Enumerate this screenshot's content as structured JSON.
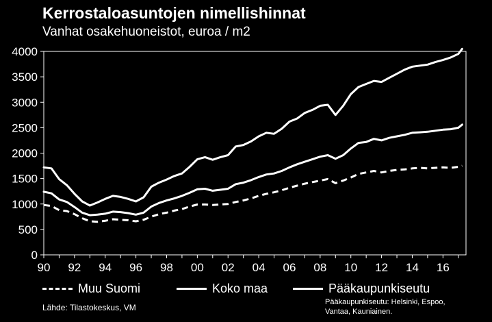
{
  "title": "Kerrostaloasuntojen nimellishinnat",
  "subtitle": "Vanhat osakehuoneistot, euroa / m2",
  "source": "Lähde: Tilastokeskus, VM",
  "note": "Pääkaupunkiseutu: Helsinki, Espoo, Vantaa, Kauniainen.",
  "colors": {
    "background": "#000000",
    "plot_area": "#ffffff",
    "series": "#ffffff"
  },
  "chart_data": {
    "type": "line",
    "title": "Kerrostaloasuntojen nimellishinnat",
    "subtitle": "Vanhat osakehuoneistot, euroa / m2",
    "xlabel": "",
    "ylabel": "",
    "xlim": [
      1990,
      2017.5
    ],
    "ylim": [
      0,
      4000
    ],
    "yticks": [
      0,
      500,
      1000,
      1500,
      2000,
      2500,
      3000,
      3500,
      4000
    ],
    "xticks": [
      "90",
      "92",
      "94",
      "96",
      "98",
      "00",
      "02",
      "04",
      "06",
      "08",
      "10",
      "12",
      "14",
      "16"
    ],
    "grid": false,
    "legend_position": "bottom",
    "series": [
      {
        "name": "Muu Suomi",
        "style": "dashed",
        "x": [
          1990.0,
          1990.5,
          1991.0,
          1991.5,
          1992.0,
          1992.5,
          1993.0,
          1993.5,
          1994.0,
          1994.5,
          1995.0,
          1995.5,
          1996.0,
          1996.5,
          1997.0,
          1997.5,
          1998.0,
          1998.5,
          1999.0,
          1999.5,
          2000.0,
          2000.5,
          2001.0,
          2001.5,
          2002.0,
          2002.5,
          2003.0,
          2003.5,
          2004.0,
          2004.5,
          2005.0,
          2005.5,
          2006.0,
          2006.5,
          2007.0,
          2007.5,
          2008.0,
          2008.5,
          2009.0,
          2009.5,
          2010.0,
          2010.5,
          2011.0,
          2011.5,
          2012.0,
          2012.5,
          2013.0,
          2013.5,
          2014.0,
          2014.5,
          2015.0,
          2015.5,
          2016.0,
          2016.5,
          2017.0,
          2017.25
        ],
        "values": [
          980,
          960,
          880,
          860,
          800,
          720,
          660,
          650,
          670,
          700,
          690,
          680,
          660,
          690,
          750,
          800,
          830,
          870,
          900,
          950,
          990,
          990,
          980,
          990,
          1000,
          1040,
          1070,
          1110,
          1160,
          1200,
          1230,
          1270,
          1320,
          1360,
          1400,
          1430,
          1460,
          1490,
          1410,
          1460,
          1520,
          1590,
          1620,
          1650,
          1620,
          1650,
          1670,
          1680,
          1700,
          1710,
          1700,
          1710,
          1720,
          1710,
          1730,
          1750
        ]
      },
      {
        "name": "Koko maa",
        "style": "solid",
        "x": [
          1990.0,
          1990.5,
          1991.0,
          1991.5,
          1992.0,
          1992.5,
          1993.0,
          1993.5,
          1994.0,
          1994.5,
          1995.0,
          1995.5,
          1996.0,
          1996.5,
          1997.0,
          1997.5,
          1998.0,
          1998.5,
          1999.0,
          1999.5,
          2000.0,
          2000.5,
          2001.0,
          2001.5,
          2002.0,
          2002.5,
          2003.0,
          2003.5,
          2004.0,
          2004.5,
          2005.0,
          2005.5,
          2006.0,
          2006.5,
          2007.0,
          2007.5,
          2008.0,
          2008.5,
          2009.0,
          2009.5,
          2010.0,
          2010.5,
          2011.0,
          2011.5,
          2012.0,
          2012.5,
          2013.0,
          2013.5,
          2014.0,
          2014.5,
          2015.0,
          2015.5,
          2016.0,
          2016.5,
          2017.0,
          2017.25
        ],
        "values": [
          1240,
          1210,
          1090,
          1040,
          940,
          830,
          780,
          790,
          810,
          850,
          840,
          820,
          790,
          830,
          950,
          1020,
          1070,
          1110,
          1160,
          1220,
          1290,
          1300,
          1260,
          1280,
          1300,
          1390,
          1420,
          1470,
          1530,
          1580,
          1600,
          1650,
          1720,
          1780,
          1830,
          1880,
          1930,
          1960,
          1890,
          1960,
          2090,
          2200,
          2220,
          2280,
          2250,
          2300,
          2330,
          2360,
          2400,
          2410,
          2420,
          2440,
          2460,
          2470,
          2500,
          2560
        ]
      },
      {
        "name": "Pääkaupunkiseutu",
        "style": "solid",
        "x": [
          1990.0,
          1990.5,
          1991.0,
          1991.5,
          1992.0,
          1992.5,
          1993.0,
          1993.5,
          1994.0,
          1994.5,
          1995.0,
          1995.5,
          1996.0,
          1996.5,
          1997.0,
          1997.5,
          1998.0,
          1998.5,
          1999.0,
          1999.5,
          2000.0,
          2000.5,
          2001.0,
          2001.5,
          2002.0,
          2002.5,
          2003.0,
          2003.5,
          2004.0,
          2004.5,
          2005.0,
          2005.5,
          2006.0,
          2006.5,
          2007.0,
          2007.5,
          2008.0,
          2008.5,
          2009.0,
          2009.5,
          2010.0,
          2010.5,
          2011.0,
          2011.5,
          2012.0,
          2012.5,
          2013.0,
          2013.5,
          2014.0,
          2014.5,
          2015.0,
          2015.5,
          2016.0,
          2016.5,
          2017.0,
          2017.25
        ],
        "values": [
          1720,
          1700,
          1490,
          1370,
          1200,
          1050,
          970,
          1030,
          1100,
          1160,
          1140,
          1100,
          1050,
          1130,
          1340,
          1420,
          1480,
          1550,
          1600,
          1730,
          1880,
          1920,
          1870,
          1920,
          1960,
          2130,
          2160,
          2230,
          2330,
          2400,
          2380,
          2480,
          2620,
          2680,
          2790,
          2850,
          2930,
          2950,
          2750,
          2930,
          3160,
          3300,
          3360,
          3420,
          3400,
          3480,
          3560,
          3640,
          3700,
          3720,
          3740,
          3790,
          3830,
          3880,
          3950,
          4050
        ]
      }
    ]
  }
}
